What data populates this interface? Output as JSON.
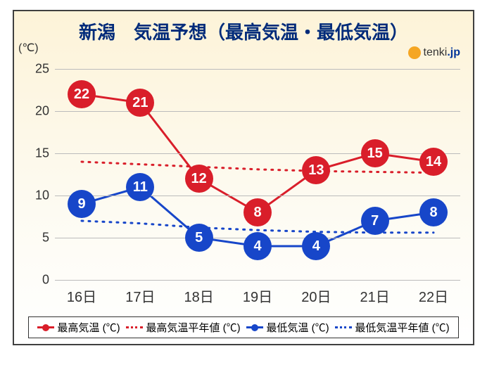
{
  "title": "新潟　気温予想（最高気温・最低気温）",
  "y_unit": "(℃)",
  "watermark_text": "tenki",
  "watermark_suffix": ".jp",
  "chart": {
    "type": "line",
    "background_gradient": [
      "#fdf3d8",
      "#ffffff"
    ],
    "grid_color": "#bbbbbb",
    "ylim": [
      0,
      25
    ],
    "ytick_step": 5,
    "y_ticks": [
      0,
      5,
      10,
      15,
      20,
      25
    ],
    "x_categories": [
      "16日",
      "17日",
      "18日",
      "19日",
      "20日",
      "21日",
      "22日"
    ],
    "series": {
      "high": {
        "label": "最高気温 (℃)",
        "color": "#d91e2a",
        "line_width": 3,
        "marker_diameter": 40,
        "marker_fontsize": 20,
        "values": [
          22,
          21,
          12,
          8,
          13,
          15,
          14
        ]
      },
      "high_avg": {
        "label": "最高気温平年値 (℃)",
        "color": "#d91e2a",
        "style": "dotted",
        "line_width": 3,
        "values": [
          14.0,
          13.7,
          13.4,
          13.1,
          12.9,
          12.8,
          12.7
        ]
      },
      "low": {
        "label": "最低気温 (℃)",
        "color": "#1746c9",
        "line_width": 3,
        "marker_diameter": 40,
        "marker_fontsize": 20,
        "values": [
          9,
          11,
          5,
          4,
          4,
          7,
          8
        ]
      },
      "low_avg": {
        "label": "最低気温平年値 (℃)",
        "color": "#1746c9",
        "style": "dotted",
        "line_width": 3,
        "values": [
          7.0,
          6.7,
          6.2,
          5.9,
          5.7,
          5.6,
          5.6
        ]
      }
    }
  }
}
